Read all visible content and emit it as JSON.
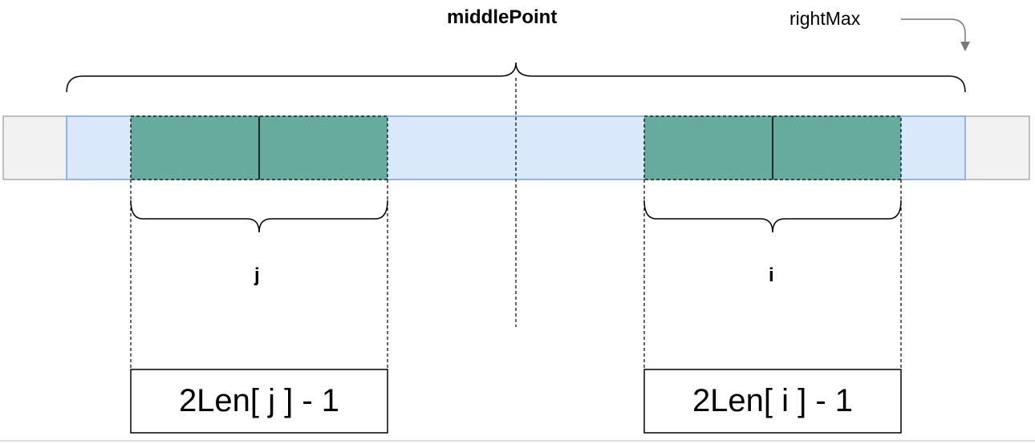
{
  "labels": {
    "middle_point": "middlePoint",
    "right_max": "rightMax",
    "left_span": "j",
    "right_span": "i",
    "left_formula": "2Len[ j ] - 1",
    "right_formula": "2Len[ i ] - 1"
  },
  "colors": {
    "outer_cell": "#f2f2f2",
    "palindrome_range": "#dae8fc",
    "palindrome_range_border": "#7da1d6",
    "mirror_segment": "#67ab9f",
    "stroke": "#000000",
    "arrow": "#777777"
  }
}
